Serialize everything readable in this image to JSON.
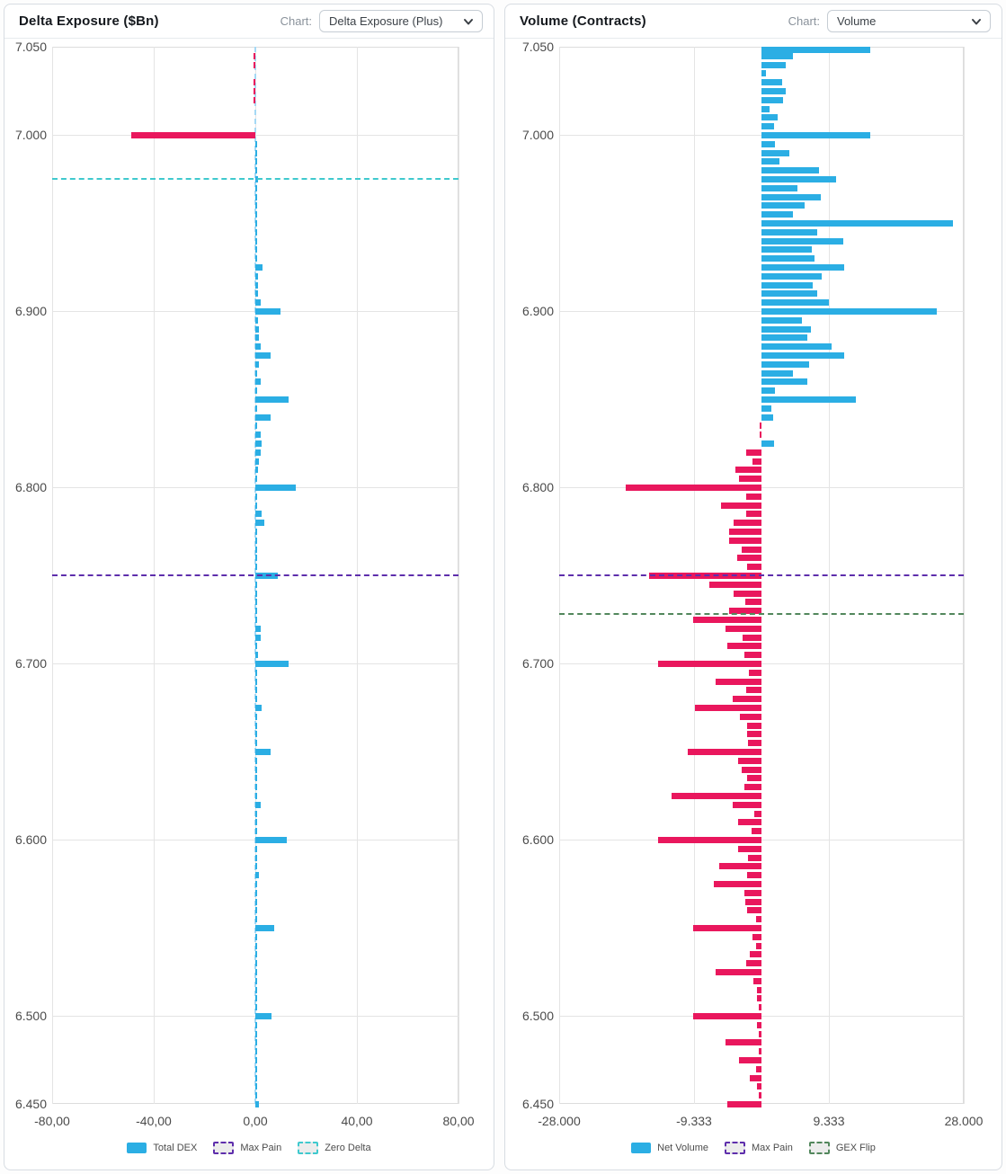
{
  "panels": [
    {
      "title": "Delta Exposure ($Bn)",
      "chart_selector_label": "Chart:",
      "chart_selector_value": "Delta Exposure (Plus)"
    },
    {
      "title": "Volume (Contracts)",
      "chart_selector_label": "Chart:",
      "chart_selector_value": "Volume"
    }
  ],
  "chart_data": [
    {
      "type": "bar",
      "orientation": "horizontal",
      "title": "Delta Exposure ($Bn)",
      "series_name": "Total DEX",
      "value_axis": {
        "min": -80,
        "max": 80,
        "ticks": [
          {
            "v": -80,
            "label": "-80,00"
          },
          {
            "v": -40,
            "label": "-40,00"
          },
          {
            "v": 0,
            "label": "0,00"
          },
          {
            "v": 40,
            "label": "40,00"
          },
          {
            "v": 80,
            "label": "80,00"
          }
        ]
      },
      "price_axis": {
        "min": 6.45,
        "max": 7.05,
        "step": 0.005,
        "ticks": [
          {
            "v": 7.05,
            "label": "7.050"
          },
          {
            "v": 7.0,
            "label": "7.000"
          },
          {
            "v": 6.9,
            "label": "6.900"
          },
          {
            "v": 6.8,
            "label": "6.800"
          },
          {
            "v": 6.7,
            "label": "6.700"
          },
          {
            "v": 6.6,
            "label": "6.600"
          },
          {
            "v": 6.5,
            "label": "6.500"
          },
          {
            "v": 6.45,
            "label": "6.450"
          }
        ]
      },
      "colors": {
        "positive": "#2baee4",
        "negative": "#e9175d"
      },
      "zero_value_line": {
        "color": "#a5d9f5",
        "style": "dashed"
      },
      "reference_lines": [
        {
          "name": "Max Pain",
          "price": 6.75,
          "color": "#5e2eac",
          "style": "dashed"
        },
        {
          "name": "Zero Delta",
          "price": 6.975,
          "color": "#3fc9ce",
          "style": "dashed"
        }
      ],
      "legend": [
        {
          "label": "Total DEX",
          "swatch": "fill",
          "color": "#2baee4"
        },
        {
          "label": "Max Pain",
          "swatch": "dashed",
          "color": "#5e2eac"
        },
        {
          "label": "Zero Delta",
          "swatch": "dashed",
          "color": "#3fc9ce"
        }
      ],
      "points": [
        [
          7.05,
          0
        ],
        [
          7.045,
          -0.7
        ],
        [
          7.04,
          -0.7
        ],
        [
          7.035,
          0
        ],
        [
          7.03,
          -0.5
        ],
        [
          7.025,
          -0.7
        ],
        [
          7.02,
          -0.7
        ],
        [
          7.015,
          0
        ],
        [
          7.01,
          0
        ],
        [
          7.005,
          0
        ],
        [
          7.0,
          -49
        ],
        [
          6.995,
          0.4
        ],
        [
          6.99,
          0.4
        ],
        [
          6.985,
          0.4
        ],
        [
          6.98,
          0.4
        ],
        [
          6.975,
          1.2
        ],
        [
          6.97,
          0.4
        ],
        [
          6.965,
          0.4
        ],
        [
          6.96,
          0.6
        ],
        [
          6.955,
          0.4
        ],
        [
          6.95,
          0.8
        ],
        [
          6.945,
          0.6
        ],
        [
          6.94,
          0.6
        ],
        [
          6.935,
          0.4
        ],
        [
          6.93,
          0.6
        ],
        [
          6.925,
          3
        ],
        [
          6.92,
          1
        ],
        [
          6.915,
          1
        ],
        [
          6.91,
          1
        ],
        [
          6.905,
          2
        ],
        [
          6.9,
          10
        ],
        [
          6.895,
          1
        ],
        [
          6.89,
          1.5
        ],
        [
          6.885,
          1.5
        ],
        [
          6.88,
          2
        ],
        [
          6.875,
          6
        ],
        [
          6.87,
          1.5
        ],
        [
          6.865,
          0.6
        ],
        [
          6.86,
          2.3
        ],
        [
          6.855,
          0.6
        ],
        [
          6.85,
          13
        ],
        [
          6.845,
          0.8
        ],
        [
          6.84,
          6
        ],
        [
          6.835,
          0.6
        ],
        [
          6.83,
          2
        ],
        [
          6.825,
          2.5
        ],
        [
          6.82,
          2
        ],
        [
          6.815,
          1.5
        ],
        [
          6.81,
          1
        ],
        [
          6.805,
          0.6
        ],
        [
          6.8,
          16
        ],
        [
          6.795,
          0.8
        ],
        [
          6.79,
          0.8
        ],
        [
          6.785,
          2.5
        ],
        [
          6.78,
          3.5
        ],
        [
          6.775,
          0.8
        ],
        [
          6.77,
          0.6
        ],
        [
          6.765,
          0.8
        ],
        [
          6.76,
          0.4
        ],
        [
          6.755,
          0.4
        ],
        [
          6.75,
          9
        ],
        [
          6.745,
          0.8
        ],
        [
          6.74,
          0.6
        ],
        [
          6.735,
          0.4
        ],
        [
          6.73,
          0.4
        ],
        [
          6.725,
          0.4
        ],
        [
          6.72,
          2
        ],
        [
          6.715,
          2
        ],
        [
          6.71,
          0.6
        ],
        [
          6.705,
          1
        ],
        [
          6.7,
          13
        ],
        [
          6.695,
          0.6
        ],
        [
          6.69,
          0.4
        ],
        [
          6.685,
          0.6
        ],
        [
          6.68,
          0.4
        ],
        [
          6.675,
          2.5
        ],
        [
          6.67,
          0.6
        ],
        [
          6.665,
          0.4
        ],
        [
          6.66,
          0.6
        ],
        [
          6.655,
          0.4
        ],
        [
          6.65,
          6
        ],
        [
          6.645,
          0.6
        ],
        [
          6.64,
          0.4
        ],
        [
          6.635,
          0.4
        ],
        [
          6.63,
          0.4
        ],
        [
          6.625,
          0.4
        ],
        [
          6.62,
          2
        ],
        [
          6.615,
          0.6
        ],
        [
          6.61,
          0.4
        ],
        [
          6.605,
          0.4
        ],
        [
          6.6,
          12.5
        ],
        [
          6.595,
          0.6
        ],
        [
          6.59,
          0.4
        ],
        [
          6.585,
          0.4
        ],
        [
          6.58,
          1.5
        ],
        [
          6.575,
          0.4
        ],
        [
          6.57,
          0.4
        ],
        [
          6.565,
          0.4
        ],
        [
          6.56,
          0.4
        ],
        [
          6.555,
          0.4
        ],
        [
          6.55,
          7.5
        ],
        [
          6.545,
          0.4
        ],
        [
          6.54,
          0.4
        ],
        [
          6.535,
          0.4
        ],
        [
          6.53,
          0.4
        ],
        [
          6.525,
          0.4
        ],
        [
          6.52,
          0.4
        ],
        [
          6.515,
          0.4
        ],
        [
          6.51,
          0.4
        ],
        [
          6.505,
          0.4
        ],
        [
          6.5,
          6.5
        ],
        [
          6.495,
          0.4
        ],
        [
          6.49,
          0.3
        ],
        [
          6.485,
          0.3
        ],
        [
          6.48,
          0.3
        ],
        [
          6.475,
          0.3
        ],
        [
          6.47,
          0.3
        ],
        [
          6.465,
          0.3
        ],
        [
          6.46,
          0.3
        ],
        [
          6.455,
          0.3
        ],
        [
          6.45,
          1.5
        ]
      ]
    },
    {
      "type": "bar",
      "orientation": "horizontal",
      "title": "Volume (Contracts)",
      "series_name": "Net Volume",
      "value_axis": {
        "min": -28000,
        "max": 28000,
        "ticks": [
          {
            "v": -28000,
            "label": "-28.000"
          },
          {
            "v": -9333,
            "label": "-9.333"
          },
          {
            "v": 9333,
            "label": "9.333"
          },
          {
            "v": 28000,
            "label": "28.000"
          }
        ]
      },
      "price_axis": {
        "min": 6.45,
        "max": 7.05,
        "step": 0.005,
        "ticks": [
          {
            "v": 7.05,
            "label": "7.050"
          },
          {
            "v": 7.0,
            "label": "7.000"
          },
          {
            "v": 6.9,
            "label": "6.900"
          },
          {
            "v": 6.8,
            "label": "6.800"
          },
          {
            "v": 6.7,
            "label": "6.700"
          },
          {
            "v": 6.6,
            "label": "6.600"
          },
          {
            "v": 6.5,
            "label": "6.500"
          },
          {
            "v": 6.45,
            "label": "6.450"
          }
        ]
      },
      "colors": {
        "positive": "#2baee4",
        "negative": "#e9175d"
      },
      "reference_lines": [
        {
          "name": "Max Pain",
          "price": 6.75,
          "color": "#5e2eac",
          "style": "dashed"
        },
        {
          "name": "GEX Flip",
          "price": 6.728,
          "color": "#52875c",
          "style": "dashed"
        }
      ],
      "legend": [
        {
          "label": "Net Volume",
          "swatch": "fill",
          "color": "#2baee4"
        },
        {
          "label": "Max Pain",
          "swatch": "dashed",
          "color": "#5e2eac"
        },
        {
          "label": "GEX Flip",
          "swatch": "dashed",
          "color": "#52875c"
        }
      ],
      "points": [
        [
          7.05,
          15100
        ],
        [
          7.045,
          4300
        ],
        [
          7.04,
          3300
        ],
        [
          7.035,
          600
        ],
        [
          7.03,
          2800
        ],
        [
          7.025,
          3300
        ],
        [
          7.02,
          2950
        ],
        [
          7.015,
          1100
        ],
        [
          7.01,
          2300
        ],
        [
          7.005,
          1700
        ],
        [
          7.0,
          15000
        ],
        [
          6.995,
          1850
        ],
        [
          6.99,
          3800
        ],
        [
          6.985,
          2500
        ],
        [
          6.98,
          8000
        ],
        [
          6.975,
          10300
        ],
        [
          6.97,
          5000
        ],
        [
          6.965,
          8200
        ],
        [
          6.96,
          6000
        ],
        [
          6.955,
          4400
        ],
        [
          6.95,
          26500
        ],
        [
          6.945,
          7700
        ],
        [
          6.94,
          11300
        ],
        [
          6.935,
          7000
        ],
        [
          6.93,
          7400
        ],
        [
          6.925,
          11400
        ],
        [
          6.92,
          8300
        ],
        [
          6.915,
          7100
        ],
        [
          6.91,
          7700
        ],
        [
          6.905,
          9300
        ],
        [
          6.9,
          24300
        ],
        [
          6.895,
          5600
        ],
        [
          6.89,
          6900
        ],
        [
          6.885,
          6300
        ],
        [
          6.88,
          9700
        ],
        [
          6.875,
          11400
        ],
        [
          6.87,
          6600
        ],
        [
          6.865,
          4400
        ],
        [
          6.86,
          6400
        ],
        [
          6.855,
          1900
        ],
        [
          6.85,
          13100
        ],
        [
          6.845,
          1350
        ],
        [
          6.84,
          1600
        ],
        [
          6.835,
          -300
        ],
        [
          6.83,
          -300
        ],
        [
          6.825,
          1800
        ],
        [
          6.82,
          -2100
        ],
        [
          6.815,
          -1200
        ],
        [
          6.81,
          -3550
        ],
        [
          6.805,
          -3100
        ],
        [
          6.8,
          -18800
        ],
        [
          6.795,
          -2100
        ],
        [
          6.79,
          -5650
        ],
        [
          6.785,
          -2100
        ],
        [
          6.78,
          -3800
        ],
        [
          6.775,
          -4500
        ],
        [
          6.77,
          -4500
        ],
        [
          6.765,
          -2700
        ],
        [
          6.76,
          -3300
        ],
        [
          6.755,
          -1950
        ],
        [
          6.75,
          -15500
        ],
        [
          6.745,
          -7250
        ],
        [
          6.74,
          -3800
        ],
        [
          6.735,
          -2200
        ],
        [
          6.73,
          -4500
        ],
        [
          6.725,
          -9450
        ],
        [
          6.72,
          -4950
        ],
        [
          6.715,
          -2575
        ],
        [
          6.71,
          -4750
        ],
        [
          6.705,
          -2350
        ],
        [
          6.7,
          -14250
        ],
        [
          6.695,
          -1700
        ],
        [
          6.69,
          -6350
        ],
        [
          6.685,
          -2100
        ],
        [
          6.68,
          -3950
        ],
        [
          6.675,
          -9200
        ],
        [
          6.67,
          -3000
        ],
        [
          6.665,
          -2000
        ],
        [
          6.66,
          -2000
        ],
        [
          6.655,
          -1900
        ],
        [
          6.65,
          -10200
        ],
        [
          6.645,
          -3200
        ],
        [
          6.64,
          -2800
        ],
        [
          6.635,
          -2000
        ],
        [
          6.63,
          -2350
        ],
        [
          6.625,
          -12500
        ],
        [
          6.62,
          -4000
        ],
        [
          6.615,
          -1000
        ],
        [
          6.61,
          -3200
        ],
        [
          6.605,
          -1350
        ],
        [
          6.6,
          -14250
        ],
        [
          6.595,
          -3200
        ],
        [
          6.59,
          -1850
        ],
        [
          6.585,
          -5900
        ],
        [
          6.58,
          -2000
        ],
        [
          6.575,
          -6600
        ],
        [
          6.57,
          -2350
        ],
        [
          6.565,
          -2200
        ],
        [
          6.56,
          -2000
        ],
        [
          6.555,
          -750
        ],
        [
          6.55,
          -9450
        ],
        [
          6.545,
          -1230
        ],
        [
          6.54,
          -750
        ],
        [
          6.535,
          -1600
        ],
        [
          6.53,
          -2100
        ],
        [
          6.525,
          -6350
        ],
        [
          6.52,
          -1100
        ],
        [
          6.515,
          -600
        ],
        [
          6.51,
          -600
        ],
        [
          6.505,
          -400
        ],
        [
          6.5,
          -9400
        ],
        [
          6.495,
          -600
        ],
        [
          6.49,
          -400
        ],
        [
          6.485,
          -4950
        ],
        [
          6.48,
          -400
        ],
        [
          6.475,
          -3050
        ],
        [
          6.47,
          -750
        ],
        [
          6.465,
          -1600
        ],
        [
          6.46,
          -600
        ],
        [
          6.455,
          -400
        ],
        [
          6.45,
          -4700
        ]
      ]
    }
  ]
}
